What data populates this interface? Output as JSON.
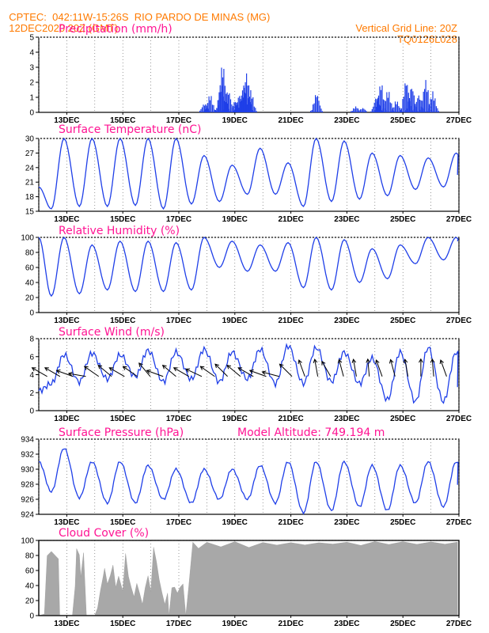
{
  "header": {
    "line1": "CPTEC:  042:11W-15:26S  RIO PARDO DE MINAS (MG)",
    "line2_left": "12DEC2020 20Z (GMT)",
    "line2_right": "Vertical Grid Line: 20Z",
    "line3_right": "TQ0126L028"
  },
  "colors": {
    "header": "#ff7a00",
    "title": "#ff1493",
    "line": "#1f3fe8",
    "bars": "#1f3fe8",
    "cloud": "#a8a8a8",
    "arrow": "#000000"
  },
  "chart_data": [
    {
      "type": "bar",
      "title": "Precipitation (mm/h)",
      "x_ticks": [
        "13DEC",
        "15DEC",
        "17DEC",
        "19DEC",
        "21DEC",
        "23DEC",
        "25DEC",
        "27DEC"
      ],
      "ylim": [
        0,
        5
      ],
      "y_ticks": [
        0,
        1,
        2,
        3,
        4,
        5
      ],
      "bursts": [
        {
          "day": 5.9,
          "peak": 0.6
        },
        {
          "day": 6.1,
          "peak": 1.2
        },
        {
          "day": 6.5,
          "peak": 2.0
        },
        {
          "day": 6.55,
          "peak": 3.3
        },
        {
          "day": 6.75,
          "peak": 1.5
        },
        {
          "day": 7.0,
          "peak": 0.8
        },
        {
          "day": 7.15,
          "peak": 1.2
        },
        {
          "day": 7.3,
          "peak": 1.9
        },
        {
          "day": 7.4,
          "peak": 2.7
        },
        {
          "day": 7.55,
          "peak": 1.5
        },
        {
          "day": 9.9,
          "peak": 1.3
        },
        {
          "day": 11.3,
          "peak": 0.4
        },
        {
          "day": 11.55,
          "peak": 0.3
        },
        {
          "day": 12.05,
          "peak": 1.1
        },
        {
          "day": 12.2,
          "peak": 2.0
        },
        {
          "day": 12.45,
          "peak": 1.5
        },
        {
          "day": 12.75,
          "peak": 0.8
        },
        {
          "day": 13.1,
          "peak": 2.2
        },
        {
          "day": 13.3,
          "peak": 1.8
        },
        {
          "day": 13.55,
          "peak": 1.2
        },
        {
          "day": 13.8,
          "peak": 2.2
        },
        {
          "day": 14.05,
          "peak": 1.4
        }
      ]
    },
    {
      "type": "line",
      "title": "Surface Temperature (nC)",
      "ylim": [
        15,
        30
      ],
      "y_ticks": [
        15,
        18,
        21,
        24,
        27,
        30
      ],
      "x_ticks": [
        "13DEC",
        "15DEC",
        "17DEC",
        "19DEC",
        "21DEC",
        "23DEC",
        "25DEC",
        "27DEC"
      ],
      "daily_max": [
        30,
        30,
        30,
        30,
        30,
        30,
        26.5,
        24.5,
        28,
        25,
        30,
        29.5,
        27,
        26.5,
        26,
        27,
        25
      ],
      "daily_min": [
        15.5,
        16,
        16,
        16.2,
        15.5,
        16.5,
        17,
        18.5,
        18.5,
        16,
        17,
        17.5,
        18.2,
        19.5,
        20,
        19.5
      ],
      "start": 20,
      "end": 22.5
    },
    {
      "type": "line",
      "title": "Relative Humidity (%)",
      "ylim": [
        0,
        100
      ],
      "y_ticks": [
        0,
        20,
        40,
        60,
        80,
        100
      ],
      "x_ticks": [
        "13DEC",
        "15DEC",
        "17DEC",
        "19DEC",
        "21DEC",
        "23DEC",
        "25DEC",
        "27DEC"
      ],
      "daily_max": [
        100,
        100,
        90,
        95,
        95,
        93,
        100,
        95,
        90,
        93,
        100,
        97,
        85,
        90,
        100,
        100,
        100
      ],
      "daily_min": [
        22,
        25,
        30,
        28,
        28,
        30,
        60,
        55,
        55,
        33,
        30,
        40,
        45,
        65,
        70,
        45
      ],
      "start": 100,
      "end": 95
    },
    {
      "type": "line",
      "title": "Surface Wind (m/s)",
      "ylim": [
        0,
        8
      ],
      "y_ticks": [
        0,
        2,
        4,
        6,
        8
      ],
      "x_ticks": [
        "13DEC",
        "15DEC",
        "17DEC",
        "19DEC",
        "21DEC",
        "23DEC",
        "25DEC",
        "27DEC"
      ],
      "daily_max": [
        6.5,
        6.2,
        6.4,
        6.2,
        6.7,
        6.5,
        6.8,
        6.5,
        6.8,
        7.2,
        7.0,
        6.5,
        5.8,
        6.5,
        7.0,
        6.5,
        6.0
      ],
      "daily_min": [
        3,
        3.2,
        3.5,
        3.8,
        3.2,
        3.5,
        3.2,
        3.5,
        3.0,
        3.0,
        3.2,
        3.0,
        1.2,
        1.0,
        1.0,
        1.0
      ],
      "start": 2.2,
      "end": 2.8,
      "arrow_directions_deg": [
        240,
        240,
        250,
        260,
        235,
        230,
        240,
        235,
        220,
        250,
        230,
        240,
        245,
        235,
        225,
        230,
        240,
        250,
        255,
        225,
        200,
        190,
        210,
        195,
        190,
        185,
        200,
        195,
        190,
        180,
        185,
        200
      ]
    },
    {
      "type": "line",
      "title": "Surface Pressure (hPa)",
      "annotation": "Model Altitude: 749.194  m",
      "ylim": [
        924,
        934
      ],
      "y_ticks": [
        924,
        926,
        928,
        930,
        932,
        934
      ],
      "x_ticks": [
        "13DEC",
        "15DEC",
        "17DEC",
        "19DEC",
        "21DEC",
        "23DEC",
        "25DEC",
        "27DEC"
      ],
      "daily_max": [
        932.5,
        932.8,
        931,
        931,
        930.5,
        930,
        930,
        930,
        930.5,
        931,
        931,
        931,
        930.5,
        930.5,
        931,
        931,
        930.5
      ],
      "daily_min": [
        927,
        926.2,
        925.5,
        925.5,
        926,
        925.5,
        926,
        926,
        925.5,
        924.2,
        924.5,
        925,
        924.5,
        925.5,
        925,
        924.8
      ],
      "start": 931,
      "end": 928
    },
    {
      "type": "area",
      "title": "Cloud Cover (%)",
      "ylim": [
        0,
        100
      ],
      "y_ticks": [
        0,
        20,
        40,
        60,
        80,
        100
      ],
      "x_ticks": [
        "13DEC",
        "15DEC",
        "17DEC",
        "19DEC",
        "21DEC",
        "23DEC",
        "25DEC",
        "27DEC"
      ],
      "profile": [
        [
          0.0,
          0
        ],
        [
          0.2,
          2
        ],
        [
          0.3,
          80
        ],
        [
          0.45,
          85
        ],
        [
          0.6,
          80
        ],
        [
          0.7,
          75
        ],
        [
          0.75,
          0
        ],
        [
          1.2,
          0
        ],
        [
          1.3,
          40
        ],
        [
          1.35,
          88
        ],
        [
          1.45,
          82
        ],
        [
          1.5,
          50
        ],
        [
          1.6,
          85
        ],
        [
          1.7,
          0
        ],
        [
          2.0,
          0
        ],
        [
          2.1,
          10
        ],
        [
          2.2,
          35
        ],
        [
          2.3,
          50
        ],
        [
          2.35,
          65
        ],
        [
          2.45,
          40
        ],
        [
          2.55,
          55
        ],
        [
          2.65,
          65
        ],
        [
          2.75,
          40
        ],
        [
          2.85,
          50
        ],
        [
          3.0,
          35
        ],
        [
          3.1,
          80
        ],
        [
          3.2,
          55
        ],
        [
          3.3,
          35
        ],
        [
          3.4,
          25
        ],
        [
          3.5,
          40
        ],
        [
          3.6,
          30
        ],
        [
          3.7,
          15
        ],
        [
          3.8,
          40
        ],
        [
          3.9,
          50
        ],
        [
          4.0,
          35
        ],
        [
          4.1,
          88
        ],
        [
          4.2,
          75
        ],
        [
          4.3,
          45
        ],
        [
          4.4,
          30
        ],
        [
          4.5,
          15
        ],
        [
          4.6,
          30
        ],
        [
          4.65,
          0
        ],
        [
          4.75,
          40
        ],
        [
          4.85,
          35
        ],
        [
          4.95,
          30
        ],
        [
          5.05,
          35
        ],
        [
          5.15,
          45
        ],
        [
          5.25,
          0
        ],
        [
          5.35,
          40
        ],
        [
          5.5,
          95
        ],
        [
          5.7,
          92
        ],
        [
          6.0,
          95
        ],
        [
          6.5,
          94
        ],
        [
          7.0,
          96
        ],
        [
          7.5,
          93
        ],
        [
          8.0,
          95
        ],
        [
          8.5,
          96
        ],
        [
          9.0,
          95
        ],
        [
          9.5,
          96
        ],
        [
          10.0,
          95
        ],
        [
          10.5,
          97
        ],
        [
          11.0,
          96
        ],
        [
          11.5,
          95
        ],
        [
          12.0,
          97
        ],
        [
          12.5,
          96
        ],
        [
          13.0,
          97
        ],
        [
          13.5,
          96
        ],
        [
          14.0,
          97
        ],
        [
          14.5,
          96
        ],
        [
          14.95,
          97
        ]
      ]
    }
  ]
}
